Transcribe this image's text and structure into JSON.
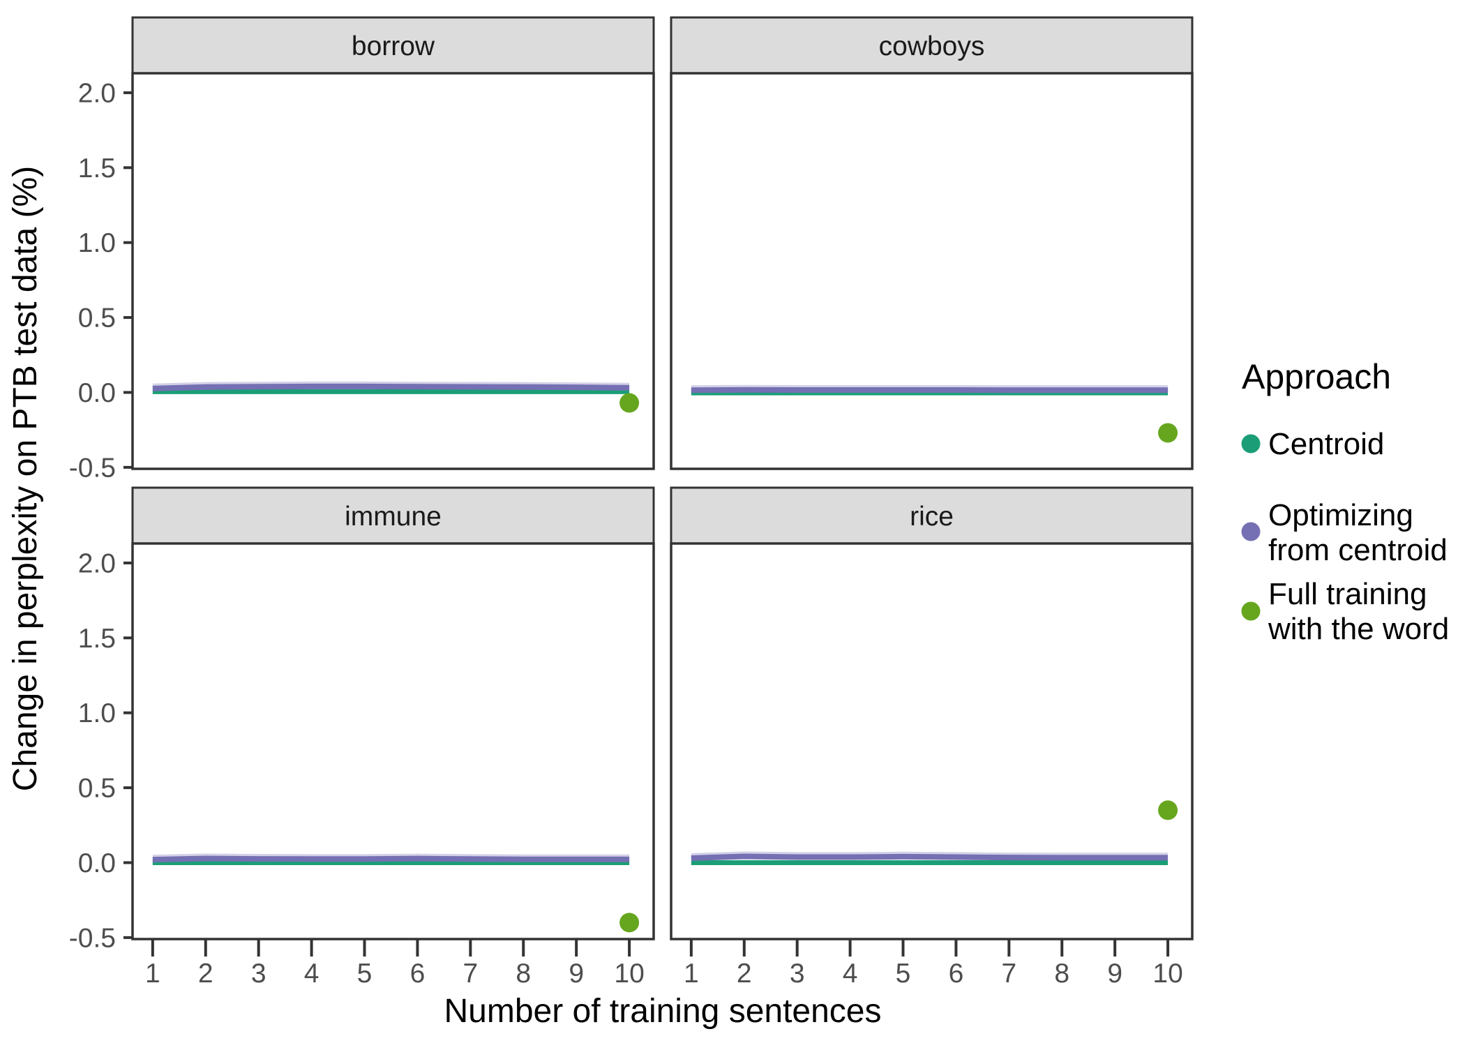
{
  "figure": {
    "legend": {
      "title": "Approach",
      "items": [
        {
          "label": "Centroid",
          "lines": [
            "Centroid"
          ],
          "color": "#1b9e77",
          "marker": "circle"
        },
        {
          "label": "Optimizing from centroid",
          "lines": [
            "Optimizing",
            "from centroid"
          ],
          "color": "#7570b3",
          "marker": "circle"
        },
        {
          "label": "Full training with the word",
          "lines": [
            "Full training",
            "with the word"
          ],
          "color": "#66a61e",
          "marker": "circle"
        }
      ]
    },
    "theme": {
      "background": "#ffffff",
      "panel_fill": "#ffffff",
      "panel_border": "#333333",
      "strip_fill": "#dcdcdc",
      "tick_color": "#333333",
      "tick_label_color": "#4d4d4d"
    }
  },
  "chart_data": {
    "type": "line",
    "title": "",
    "xlabel": "Number of training sentences",
    "ylabel": "Change in perplexity on PTB test data (%)",
    "legend_title": "Approach",
    "legend_position": "right",
    "grid": false,
    "x": [
      1,
      2,
      3,
      4,
      5,
      6,
      7,
      8,
      9,
      10
    ],
    "xticks": [
      1,
      2,
      3,
      4,
      5,
      6,
      7,
      8,
      9,
      10
    ],
    "yticks": [
      -0.5,
      0.0,
      0.5,
      1.0,
      1.5,
      2.0
    ],
    "xlim": [
      0.62,
      10.46
    ],
    "ylim": [
      -0.51,
      2.13
    ],
    "facets": [
      {
        "label": "borrow",
        "series": [
          {
            "name": "Centroid",
            "type": "line",
            "color": "#1b9e77",
            "values": [
              0.005,
              0.005,
              0.005,
              0.005,
              0.005,
              0.005,
              0.005,
              0.005,
              0.005,
              0.005
            ]
          },
          {
            "name": "Optimizing from centroid",
            "type": "line",
            "color": "#7570b3",
            "values": [
              0.026,
              0.036,
              0.038,
              0.04,
              0.04,
              0.038,
              0.037,
              0.036,
              0.034,
              0.031
            ]
          },
          {
            "name": "Full training with the word",
            "type": "point",
            "color": "#66a61e",
            "x": 10,
            "y": -0.07
          }
        ]
      },
      {
        "label": "cowboys",
        "series": [
          {
            "name": "Centroid",
            "type": "line",
            "color": "#1b9e77",
            "values": [
              -0.003,
              -0.003,
              -0.003,
              -0.003,
              -0.003,
              -0.003,
              -0.003,
              -0.003,
              -0.003,
              -0.003
            ]
          },
          {
            "name": "Optimizing from centroid",
            "type": "line",
            "color": "#7570b3",
            "values": [
              0.015,
              0.017,
              0.016,
              0.016,
              0.016,
              0.016,
              0.015,
              0.015,
              0.015,
              0.015
            ]
          },
          {
            "name": "Full training with the word",
            "type": "point",
            "color": "#66a61e",
            "x": 10,
            "y": -0.27
          }
        ]
      },
      {
        "label": "immune",
        "series": [
          {
            "name": "Centroid",
            "type": "line",
            "color": "#1b9e77",
            "values": [
              0.0,
              0.0,
              0.0,
              0.0,
              0.0,
              0.0,
              0.0,
              0.0,
              0.0,
              0.0
            ]
          },
          {
            "name": "Optimizing from centroid",
            "type": "line",
            "color": "#7570b3",
            "values": [
              0.02,
              0.028,
              0.025,
              0.024,
              0.024,
              0.027,
              0.024,
              0.022,
              0.022,
              0.022
            ]
          },
          {
            "name": "Full training with the word",
            "type": "point",
            "color": "#66a61e",
            "x": 10,
            "y": -0.4
          }
        ]
      },
      {
        "label": "rice",
        "series": [
          {
            "name": "Centroid",
            "type": "line",
            "color": "#1b9e77",
            "values": [
              0.0,
              0.0,
              0.0,
              0.0,
              0.0,
              0.0,
              0.0,
              0.0,
              0.0,
              0.0
            ]
          },
          {
            "name": "Optimizing from centroid",
            "type": "line",
            "color": "#7570b3",
            "values": [
              0.03,
              0.042,
              0.037,
              0.037,
              0.04,
              0.037,
              0.034,
              0.033,
              0.033,
              0.033
            ]
          },
          {
            "name": "Full training with the word",
            "type": "point",
            "color": "#66a61e",
            "x": 10,
            "y": 0.35
          }
        ]
      }
    ]
  }
}
